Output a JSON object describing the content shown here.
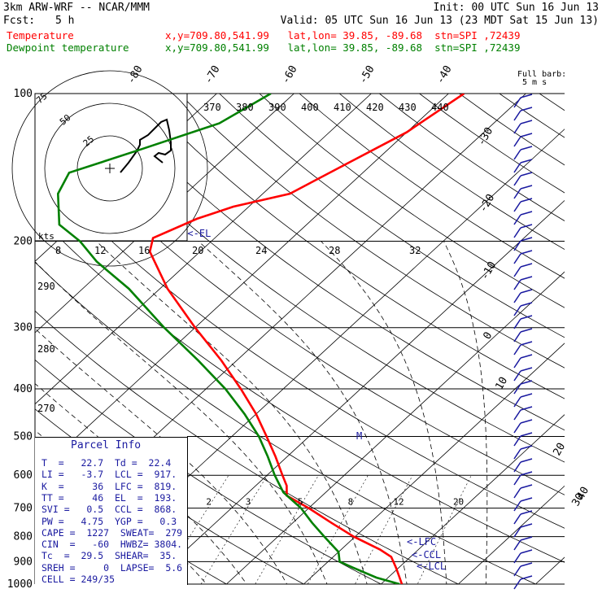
{
  "header": {
    "model": "3km ARW-WRF -- NCAR/MMM",
    "init": "Init: 00 UTC Sun 16 Jun 13",
    "fcst_label": "Fcst:",
    "fcst_value": "5 h",
    "valid": "Valid: 05 UTC Sun 16 Jun 13 (23 MDT Sat 15 Jun 13)",
    "temp_label": "Temperature",
    "dew_label": "Dewpoint temperature",
    "location": "x,y=709.80,541.99   lat,lon= 39.85, -89.68  stn=SPI ,72439"
  },
  "colors": {
    "temperature": "#ff0000",
    "dewpoint": "#008000",
    "wind": "#1a1aa0",
    "isobar": "#000000"
  },
  "chart_data": {
    "type": "line",
    "title": "",
    "xlabel": "",
    "ylabel": "",
    "ylim": [
      1000,
      100
    ],
    "y_scale": "log",
    "pressure_levels": [
      100,
      200,
      300,
      400,
      500,
      600,
      700,
      800,
      900,
      1000
    ],
    "isotherm_labels": [
      "-80",
      "-70",
      "-60",
      "-50",
      "-40",
      "-30",
      "-20",
      "-10",
      "0",
      "10",
      "20",
      "30",
      "40"
    ],
    "theta_labels": [
      "370",
      "380",
      "390",
      "400",
      "410",
      "420",
      "430",
      "440"
    ],
    "hodo_speed_labels": [
      "8",
      "12",
      "16",
      "20",
      "24",
      "28",
      "32"
    ],
    "mixing_ratio_labels": [
      "2",
      "3",
      "5",
      "8",
      "12",
      "20"
    ],
    "side_labels": [
      "290",
      "280",
      "270"
    ],
    "annotations": {
      "el": "<-EL",
      "lfc": "<-LFC",
      "ccl": "<-CCL",
      "lcl": "<-LCL",
      "m": "M",
      "kts": "kts",
      "full_barb": "Full barb:",
      "full_barb_val": "5 m s"
    },
    "hodograph": {
      "ring_labels": [
        "25",
        "50",
        "75"
      ]
    },
    "series": [
      {
        "name": "Temperature",
        "values": [
          {
            "p": 1000,
            "t": 22.7
          },
          {
            "p": 970,
            "t": 21.5
          },
          {
            "p": 925,
            "t": 19.6
          },
          {
            "p": 880,
            "t": 17.5
          },
          {
            "p": 850,
            "t": 15.0
          },
          {
            "p": 800,
            "t": 9.8
          },
          {
            "p": 750,
            "t": 5.0
          },
          {
            "p": 700,
            "t": 0.0
          },
          {
            "p": 660,
            "t": -4.6
          },
          {
            "p": 630,
            "t": -6.0
          },
          {
            "p": 600,
            "t": -8.0
          },
          {
            "p": 550,
            "t": -11.5
          },
          {
            "p": 500,
            "t": -15.5
          },
          {
            "p": 450,
            "t": -20.0
          },
          {
            "p": 400,
            "t": -25.5
          },
          {
            "p": 350,
            "t": -32.0
          },
          {
            "p": 300,
            "t": -40.0
          },
          {
            "p": 250,
            "t": -49.0
          },
          {
            "p": 210,
            "t": -56.5
          },
          {
            "p": 197,
            "t": -58.0
          },
          {
            "p": 180,
            "t": -55.0
          },
          {
            "p": 170,
            "t": -52.0
          },
          {
            "p": 160,
            "t": -46.5
          },
          {
            "p": 140,
            "t": -43.5
          },
          {
            "p": 120,
            "t": -40.0
          },
          {
            "p": 100,
            "t": -38.0
          }
        ]
      },
      {
        "name": "Dewpoint temperature",
        "values": [
          {
            "p": 1000,
            "t": 22.4
          },
          {
            "p": 970,
            "t": 18.5
          },
          {
            "p": 925,
            "t": 14.0
          },
          {
            "p": 900,
            "t": 11.5
          },
          {
            "p": 860,
            "t": 10.0
          },
          {
            "p": 800,
            "t": 6.0
          },
          {
            "p": 750,
            "t": 2.5
          },
          {
            "p": 700,
            "t": -1.0
          },
          {
            "p": 650,
            "t": -5.5
          },
          {
            "p": 600,
            "t": -9.0
          },
          {
            "p": 550,
            "t": -12.5
          },
          {
            "p": 500,
            "t": -16.5
          },
          {
            "p": 450,
            "t": -21.5
          },
          {
            "p": 400,
            "t": -27.5
          },
          {
            "p": 350,
            "t": -35.0
          },
          {
            "p": 300,
            "t": -44.0
          },
          {
            "p": 250,
            "t": -54.0
          },
          {
            "p": 220,
            "t": -62.0
          },
          {
            "p": 200,
            "t": -67.0
          },
          {
            "p": 185,
            "t": -72.0
          },
          {
            "p": 160,
            "t": -76.5
          },
          {
            "p": 145,
            "t": -78.0
          },
          {
            "p": 130,
            "t": -72.0
          },
          {
            "p": 115,
            "t": -65.5
          },
          {
            "p": 100,
            "t": -63.0
          }
        ]
      }
    ]
  },
  "parcel_info": {
    "title": "Parcel Info",
    "rows": [
      "T  =   22.7  Td =  22.4",
      "LI =   -3.7  LCL =  917.",
      "K  =     36  LFC =  819.",
      "TT =     46  EL  =  193.",
      "SVI =   0.5  CCL =  868.",
      "PW =   4.75  YGP =   0.3",
      "CAPE =  1227  SWEAT=  279",
      "CIN  =   -60  HWBZ= 3804.",
      "Tc  =  29.5  SHEAR=  35.",
      "SREH =     0  LAPSE=  5.6",
      "CELL = 249/35"
    ]
  }
}
